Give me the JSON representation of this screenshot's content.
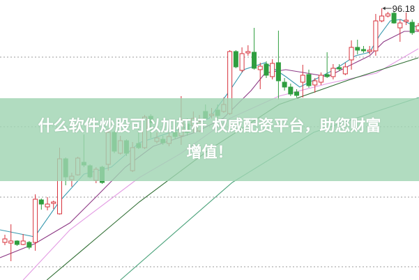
{
  "banner": {
    "line1": "什么软件炒股可以加杠杆 权威配资平台，助您财富",
    "line2": "增值！"
  },
  "colors": {
    "up": "#d7303a",
    "down": "#2f9e3f",
    "ma5": "#3a9ab0",
    "ma10": "#8e3a86",
    "ma20": "#e39ae3",
    "ma60": "#2f6e33",
    "ma120": "#4aa27a",
    "grid": "#999999",
    "banner": "#a0d4b2"
  },
  "chart_data": {
    "type": "candlestick",
    "grid": true,
    "ylim": [
      84.48,
      96.54
    ],
    "high_label": "96.18",
    "high_label_index": 62,
    "candles_fields": [
      "open",
      "close",
      "high",
      "low"
    ],
    "candles": [
      [
        86.1,
        86.25,
        86.43,
        85.98
      ],
      [
        86.07,
        86.16,
        86.88,
        85.29
      ],
      [
        86.16,
        86.01,
        86.19,
        85.95
      ],
      [
        86.01,
        86.16,
        86.46,
        85.98
      ],
      [
        86.1,
        85.89,
        86.16,
        85.8
      ],
      [
        86.1,
        87.96,
        88.17,
        85.74
      ],
      [
        87.93,
        87.75,
        87.99,
        87.51
      ],
      [
        87.63,
        87.75,
        88.05,
        87.48
      ],
      [
        87.78,
        87.84,
        87.9,
        87.54
      ],
      [
        87.33,
        89.7,
        90.18,
        87.3
      ],
      [
        89.7,
        88.92,
        89.76,
        88.56
      ],
      [
        88.8,
        88.95,
        89.1,
        88.5
      ],
      [
        89.01,
        89.73,
        89.79,
        88.98
      ],
      [
        89.55,
        89.43,
        90.75,
        89.34
      ],
      [
        89.4,
        88.92,
        89.46,
        88.86
      ],
      [
        88.77,
        89.25,
        89.34,
        88.65
      ],
      [
        89.34,
        88.68,
        89.4,
        88.62
      ],
      [
        89.46,
        90.84,
        90.99,
        89.19
      ],
      [
        90.84,
        90.03,
        90.9,
        89.94
      ],
      [
        89.94,
        90.48,
        90.69,
        89.88
      ],
      [
        90.48,
        89.94,
        90.54,
        89.82
      ],
      [
        89.19,
        90.18,
        90.42,
        89.13
      ],
      [
        90.36,
        90.18,
        91.14,
        90.12
      ],
      [
        90.18,
        91.5,
        91.59,
        90.12
      ],
      [
        91.53,
        91.26,
        91.62,
        90.6
      ],
      [
        90.45,
        90.6,
        90.84,
        90.36
      ],
      [
        90.54,
        90.39,
        90.69,
        90.3
      ],
      [
        90.36,
        90.66,
        90.84,
        90.24
      ],
      [
        90.84,
        90.66,
        91.29,
        90.54
      ],
      [
        90.69,
        91.29,
        92.4,
        90.3
      ],
      [
        91.2,
        90.84,
        91.44,
        90.69
      ],
      [
        91.14,
        91.44,
        91.74,
        90.84
      ],
      [
        90.9,
        91.29,
        91.59,
        90.84
      ],
      [
        91.74,
        91.44,
        92.04,
        91.38
      ],
      [
        91.56,
        91.62,
        91.89,
        91.44
      ],
      [
        91.8,
        91.56,
        92.04,
        91.44
      ],
      [
        91.74,
        92.04,
        92.34,
        91.68
      ],
      [
        91.65,
        94.32,
        94.38,
        91.59
      ],
      [
        94.32,
        93.66,
        94.38,
        93.6
      ],
      [
        93.51,
        94.23,
        94.5,
        93.42
      ],
      [
        94.26,
        94.32,
        94.59,
        94.14
      ],
      [
        94.29,
        93.6,
        95.34,
        93.54
      ],
      [
        93.54,
        93.69,
        93.84,
        92.7
      ],
      [
        93.78,
        93.3,
        93.9,
        93.18
      ],
      [
        93.24,
        93.81,
        93.99,
        93.12
      ],
      [
        93.84,
        93.06,
        95.22,
        92.25
      ],
      [
        93.0,
        92.79,
        93.18,
        92.64
      ],
      [
        92.79,
        92.49,
        92.94,
        92.4
      ],
      [
        92.58,
        92.43,
        92.7,
        92.34
      ],
      [
        93.0,
        93.3,
        93.75,
        92.34
      ],
      [
        93.33,
        92.85,
        93.54,
        92.76
      ],
      [
        92.88,
        93.06,
        93.18,
        92.55
      ],
      [
        93.0,
        93.3,
        93.42,
        92.88
      ],
      [
        93.33,
        93.24,
        94.29,
        93.18
      ],
      [
        93.24,
        93.6,
        93.78,
        93.12
      ],
      [
        93.63,
        93.57,
        93.78,
        93.48
      ],
      [
        93.36,
        93.66,
        93.84,
        93.3
      ],
      [
        93.96,
        94.5,
        94.8,
        93.54
      ],
      [
        94.5,
        94.38,
        94.83,
        94.2
      ],
      [
        94.41,
        94.35,
        94.56,
        94.26
      ],
      [
        94.32,
        94.38,
        94.56,
        94.2
      ],
      [
        94.35,
        95.64,
        95.94,
        94.14
      ],
      [
        95.64,
        95.85,
        96.18,
        95.58
      ],
      [
        95.85,
        95.94,
        96.03,
        95.79
      ],
      [
        95.97,
        95.55,
        96.03,
        95.52
      ],
      [
        95.34,
        95.55,
        95.7,
        94.74
      ],
      [
        95.61,
        95.67,
        96.0,
        95.46
      ],
      [
        95.58,
        95.13,
        95.7,
        95.04
      ],
      [
        95.25,
        95.43,
        95.55,
        95.16
      ]
    ],
    "moving_averages": [
      {
        "key": "ma5",
        "points": [
          [
            -0.8,
            86.64
          ],
          [
            4.9,
            86.34
          ],
          [
            8.9,
            87.84
          ],
          [
            13,
            89.04
          ],
          [
            17.5,
            89.34
          ],
          [
            22.1,
            90.39
          ],
          [
            29,
            90.99
          ],
          [
            33.6,
            91.44
          ],
          [
            37,
            92.64
          ],
          [
            39.3,
            93.54
          ],
          [
            42.8,
            93.84
          ],
          [
            46.2,
            93.24
          ],
          [
            48.5,
            92.79
          ],
          [
            50.8,
            93.09
          ],
          [
            54.2,
            93.54
          ],
          [
            57.7,
            94.14
          ],
          [
            60,
            94.29
          ],
          [
            61.7,
            95.04
          ],
          [
            63.4,
            95.64
          ],
          [
            65.1,
            95.7
          ],
          [
            68,
            95.34
          ]
        ]
      },
      {
        "key": "ma10",
        "points": [
          [
            -0.8,
            85.44
          ],
          [
            4.9,
            86.04
          ],
          [
            10.7,
            86.94
          ],
          [
            15.3,
            88.14
          ],
          [
            19.8,
            89.34
          ],
          [
            24.4,
            90.24
          ],
          [
            31.3,
            90.84
          ],
          [
            35.9,
            91.44
          ],
          [
            40.5,
            92.64
          ],
          [
            42.8,
            93.39
          ],
          [
            46.2,
            93.54
          ],
          [
            49.7,
            93.39
          ],
          [
            53.1,
            93.24
          ],
          [
            56.5,
            93.69
          ],
          [
            60,
            94.14
          ],
          [
            62.3,
            94.74
          ],
          [
            65.7,
            95.19
          ],
          [
            68,
            95.19
          ]
        ]
      },
      {
        "key": "ma20",
        "points": [
          [
            3,
            84.48
          ],
          [
            10.7,
            86.64
          ],
          [
            22.1,
            88.89
          ],
          [
            29,
            89.94
          ],
          [
            37,
            91.44
          ],
          [
            45.1,
            92.4
          ],
          [
            53.1,
            92.94
          ],
          [
            61.1,
            93.39
          ],
          [
            68,
            94.44
          ]
        ]
      },
      {
        "key": "ma60",
        "points": [
          [
            6.9,
            84.48
          ],
          [
            22.1,
            87.84
          ],
          [
            33.6,
            90.09
          ],
          [
            45.1,
            92.04
          ],
          [
            56.5,
            93.09
          ],
          [
            68,
            94.05
          ]
        ]
      },
      {
        "key": "ma120",
        "points": [
          [
            19,
            84.48
          ],
          [
            37.4,
            88.68
          ],
          [
            50.8,
            90.84
          ],
          [
            61.1,
            91.74
          ],
          [
            68.1,
            92.34
          ]
        ]
      }
    ]
  }
}
